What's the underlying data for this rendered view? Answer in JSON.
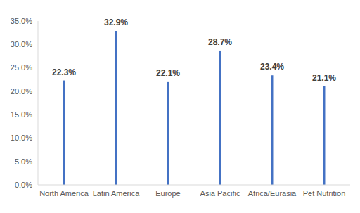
{
  "chart_data": {
    "type": "bar",
    "categories": [
      "North America",
      "Latin America",
      "Europe",
      "Asia Pacific",
      "Africa/Eurasia",
      "Pet Nutrition"
    ],
    "values": [
      22.3,
      32.9,
      22.1,
      28.7,
      23.4,
      21.1
    ],
    "value_labels": [
      "22.3%",
      "32.9%",
      "22.1%",
      "28.7%",
      "23.4%",
      "21.1%"
    ],
    "color": "#4472c4",
    "ylim": [
      0,
      35
    ],
    "yticks": [
      {
        "value": 0,
        "label": "0.0%"
      },
      {
        "value": 5,
        "label": "5.0%"
      },
      {
        "value": 10,
        "label": "10.0%"
      },
      {
        "value": 15,
        "label": "15.0%"
      },
      {
        "value": 20,
        "label": "20.0%"
      },
      {
        "value": 25,
        "label": "25.0%"
      },
      {
        "value": 30,
        "label": "30.0%"
      },
      {
        "value": 35,
        "label": "35.0%"
      }
    ],
    "grid": false,
    "data_labels": true
  }
}
